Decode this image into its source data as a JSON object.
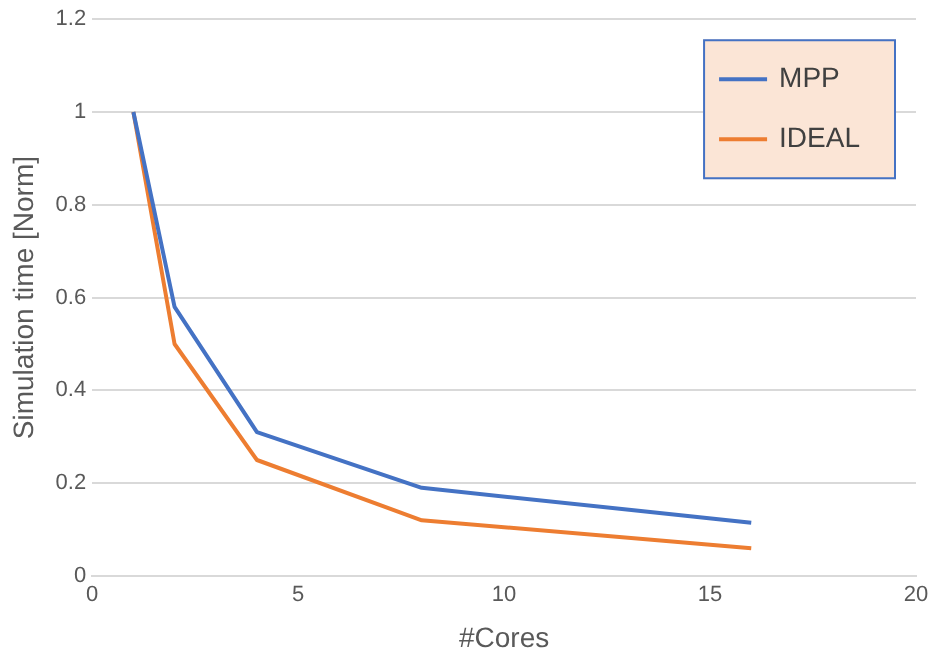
{
  "chart_data": {
    "type": "line",
    "xlabel": "#Cores",
    "ylabel": "Simulation time [Norm]",
    "x": [
      1,
      2,
      4,
      8,
      16
    ],
    "series": [
      {
        "name": "MPP",
        "color": "#4472c4",
        "values": [
          1,
          0.58,
          0.31,
          0.19,
          0.115
        ]
      },
      {
        "name": "IDEAL",
        "color": "#ed7d31",
        "values": [
          1,
          0.5,
          0.25,
          0.12,
          0.06
        ]
      }
    ],
    "xlim": [
      0,
      20
    ],
    "xticks": [
      0,
      5,
      10,
      15,
      20
    ],
    "ylim": [
      0,
      1.2
    ],
    "yticks": [
      0,
      0.2,
      0.4,
      0.6,
      0.8,
      1,
      1.2
    ],
    "grid": "y",
    "legend": "top right",
    "marker": "none",
    "line_style": "solid"
  }
}
